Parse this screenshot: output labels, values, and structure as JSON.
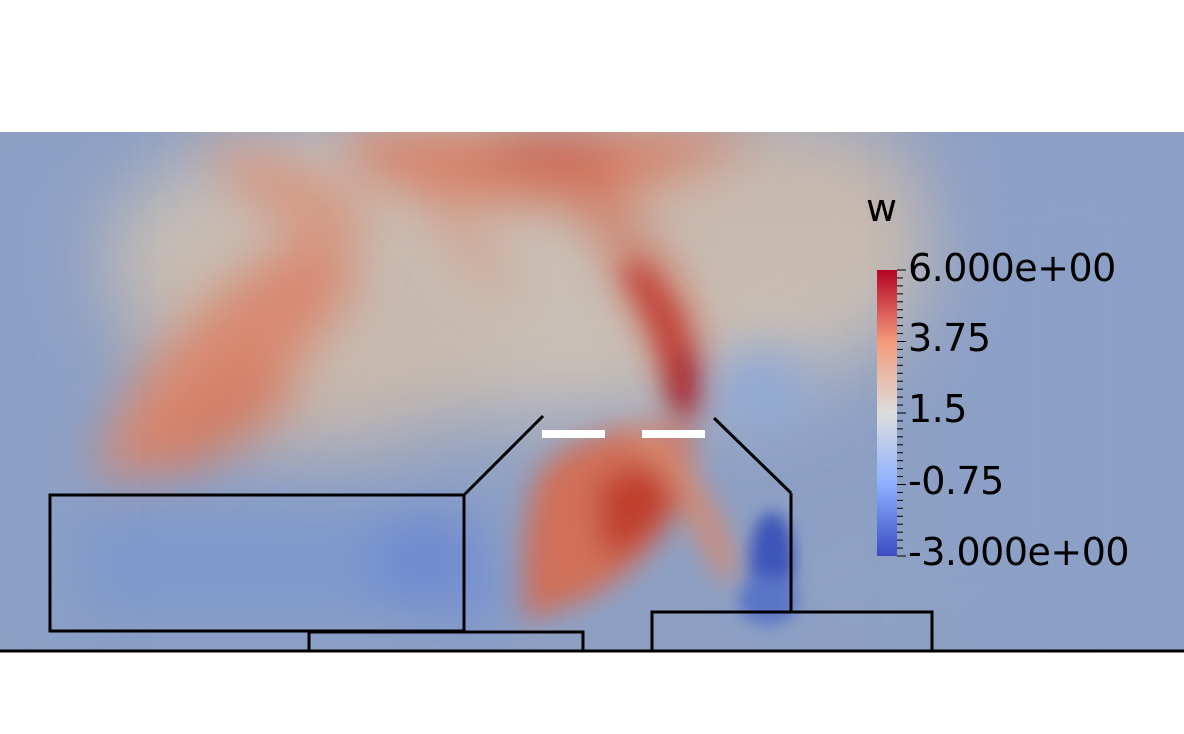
{
  "legend": {
    "title": "w",
    "max_label": "6.000e+00",
    "ticks": [
      "3.75",
      "1.5",
      "-0.75"
    ],
    "min_label": "-3.000e+00",
    "range": [
      -3.0,
      6.0
    ],
    "colormap": [
      "#3b4cc0",
      "#8db0fe",
      "#dddddd",
      "#f49a7b",
      "#b40426"
    ]
  }
}
